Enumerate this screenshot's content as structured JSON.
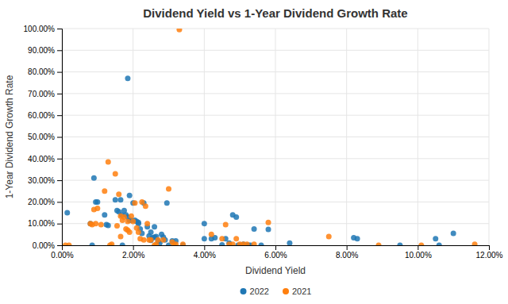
{
  "chart_data": {
    "type": "scatter",
    "title": "Dividend Yield vs 1-Year Dividend Growth Rate",
    "x_label": "Dividend Yield",
    "y_label": "1-Year Dividend Growth Rate",
    "xlim": [
      0,
      0.12
    ],
    "ylim": [
      0,
      1.0
    ],
    "xticks": [
      {
        "value": 0,
        "label": "0.00%"
      },
      {
        "value": 0.02,
        "label": "2.00%"
      },
      {
        "value": 0.04,
        "label": "4.00%"
      },
      {
        "value": 0.06,
        "label": "6.00%"
      },
      {
        "value": 0.08,
        "label": "8.00%"
      },
      {
        "value": 0.1,
        "label": "10.00%"
      },
      {
        "value": 0.12,
        "label": "12.00%"
      }
    ],
    "yticks": [
      {
        "value": 0,
        "label": "0.00%"
      },
      {
        "value": 0.1,
        "label": "10.00%"
      },
      {
        "value": 0.2,
        "label": "20.00%"
      },
      {
        "value": 0.3,
        "label": "30.00%"
      },
      {
        "value": 0.4,
        "label": "40.00%"
      },
      {
        "value": 0.5,
        "label": "50.00%"
      },
      {
        "value": 0.6,
        "label": "60.00%"
      },
      {
        "value": 0.7,
        "label": "70.00%"
      },
      {
        "value": 0.8,
        "label": "80.00%"
      },
      {
        "value": 0.9,
        "label": "90.00%"
      },
      {
        "value": 1.0,
        "label": "100.00%"
      }
    ],
    "grid": true,
    "legend": "bottom",
    "series": [
      {
        "name": "2022",
        "x": [
          0.0015,
          0.008,
          0.0085,
          0.009,
          0.0095,
          0.01,
          0.012,
          0.0125,
          0.013,
          0.015,
          0.0155,
          0.016,
          0.0165,
          0.0168,
          0.017,
          0.0175,
          0.018,
          0.0185,
          0.0185,
          0.019,
          0.019,
          0.0195,
          0.02,
          0.0205,
          0.021,
          0.0215,
          0.0215,
          0.022,
          0.0225,
          0.023,
          0.024,
          0.0245,
          0.025,
          0.025,
          0.0255,
          0.026,
          0.026,
          0.0265,
          0.027,
          0.0275,
          0.028,
          0.0285,
          0.029,
          0.0295,
          0.03,
          0.031,
          0.032,
          0.034,
          0.04,
          0.04,
          0.042,
          0.043,
          0.045,
          0.046,
          0.047,
          0.048,
          0.049,
          0.0495,
          0.05,
          0.051,
          0.052,
          0.0525,
          0.053,
          0.054,
          0.056,
          0.058,
          0.064,
          0.082,
          0.083,
          0.095,
          0.105,
          0.106,
          0.11
        ],
        "values": [
          0.15,
          0.1,
          0,
          0.31,
          0.2,
          0.2,
          0.14,
          0.095,
          0.092,
          0.21,
          0.16,
          0.155,
          0.21,
          0.14,
          0,
          0.16,
          0.14,
          0.13,
          0.77,
          0.23,
          0.115,
          0.115,
          0.195,
          0.115,
          0.11,
          0.105,
          0.1,
          0.075,
          0.055,
          0.195,
          0.085,
          0.043,
          0.06,
          0.023,
          0.035,
          0.085,
          0.038,
          0.04,
          0.02,
          0.01,
          0.05,
          0.038,
          0.025,
          0.195,
          0,
          0.02,
          0.02,
          0,
          0.1,
          0.03,
          0.03,
          0.035,
          0.002,
          0.03,
          0.01,
          0.14,
          0.13,
          0,
          0,
          0.005,
          0,
          0,
          0,
          0.075,
          0,
          0.073,
          0.01,
          0.035,
          0.03,
          0,
          0.03,
          0,
          0.055
        ]
      },
      {
        "name": "2021",
        "x": [
          0.001,
          0.002,
          0.008,
          0.0085,
          0.009,
          0.0095,
          0.01,
          0.011,
          0.012,
          0.013,
          0.0135,
          0.014,
          0.015,
          0.0155,
          0.016,
          0.0165,
          0.0165,
          0.017,
          0.0175,
          0.018,
          0.0185,
          0.0185,
          0.019,
          0.0195,
          0.02,
          0.0205,
          0.021,
          0.0215,
          0.022,
          0.0225,
          0.023,
          0.0235,
          0.024,
          0.0245,
          0.025,
          0.026,
          0.0265,
          0.027,
          0.0285,
          0.03,
          0.031,
          0.0315,
          0.032,
          0.033,
          0.034,
          0.042,
          0.045,
          0.046,
          0.047,
          0.048,
          0.049,
          0.05,
          0.051,
          0.052,
          0.054,
          0.058,
          0.075,
          0.089,
          0.101,
          0.116
        ],
        "values": [
          0,
          0,
          0.1,
          0.095,
          0.165,
          0.1,
          0.17,
          0.095,
          0.25,
          0.385,
          0,
          0.005,
          0.33,
          0.09,
          0.235,
          0.135,
          0.04,
          0.115,
          0.13,
          0.075,
          0.07,
          0.11,
          0.06,
          0.135,
          0.11,
          0.195,
          0.08,
          0.06,
          0.03,
          0.2,
          0.025,
          0.18,
          0.1,
          0.025,
          0.025,
          0,
          0.005,
          0.025,
          0.025,
          0.26,
          0.015,
          0,
          0.005,
          0.995,
          0.005,
          0.05,
          0.03,
          0.095,
          0.005,
          0.005,
          0.03,
          0.005,
          0.005,
          0.005,
          0.005,
          0.105,
          0.04,
          0,
          0,
          0.005
        ]
      }
    ]
  }
}
